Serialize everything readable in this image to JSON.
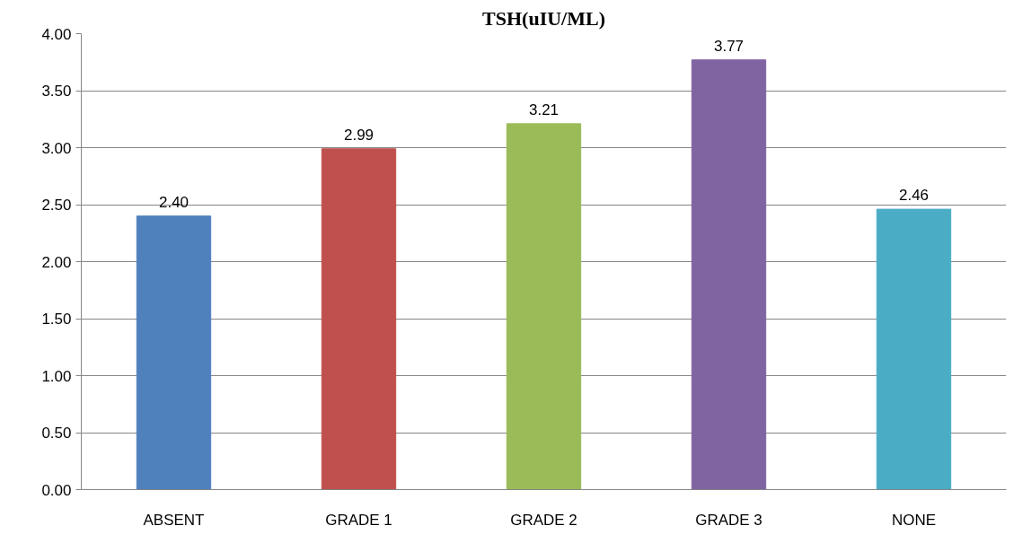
{
  "chart_data": {
    "type": "bar",
    "title": "TSH(uIU/ML)",
    "categories": [
      "ABSENT",
      "GRADE 1",
      "GRADE 2",
      "GRADE 3",
      "NONE"
    ],
    "values": [
      2.4,
      2.99,
      3.21,
      3.77,
      2.46
    ],
    "value_labels": [
      "2.40",
      "2.99",
      "3.21",
      "3.77",
      "2.46"
    ],
    "colors": [
      "#4f81bd",
      "#c0504d",
      "#9bbb59",
      "#8064a2",
      "#4bacc6"
    ],
    "ylim": [
      0,
      4
    ],
    "yticks": [
      {
        "value": 0,
        "label": "0.00"
      },
      {
        "value": 0.5,
        "label": "0.50"
      },
      {
        "value": 1,
        "label": "1.00"
      },
      {
        "value": 1.5,
        "label": "1.50"
      },
      {
        "value": 2,
        "label": "2.00"
      },
      {
        "value": 2.5,
        "label": "2.50"
      },
      {
        "value": 3,
        "label": "3.00"
      },
      {
        "value": 3.5,
        "label": "3.50"
      },
      {
        "value": 4,
        "label": "4.00"
      }
    ],
    "grid": "y"
  }
}
